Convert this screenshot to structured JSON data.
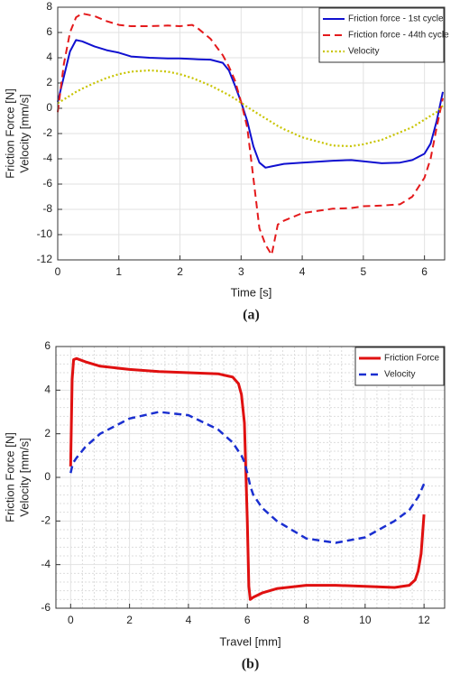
{
  "chart_data": [
    {
      "type": "line",
      "caption": "(a)",
      "xlabel": "Time [s]",
      "ylabel": [
        "Friction Force [N]",
        "Velocity [mm/s]"
      ],
      "x": [
        0,
        0.1,
        0.2,
        0.3,
        0.4,
        0.6,
        0.8,
        1.0,
        1.2,
        1.5,
        1.8,
        2.0,
        2.2,
        2.3,
        2.5,
        2.7,
        2.8,
        2.9,
        3.0,
        3.1,
        3.2,
        3.3,
        3.4,
        3.5,
        3.6,
        3.7,
        4.0,
        4.5,
        4.8,
        5.0,
        5.3,
        5.6,
        5.8,
        6.0,
        6.1,
        6.2,
        6.3
      ],
      "series": [
        {
          "name": "Friction force - 1st cycle",
          "color": "#1010d0",
          "dash": "solid",
          "values": [
            0.5,
            2.5,
            4.5,
            5.4,
            5.3,
            4.9,
            4.6,
            4.4,
            4.1,
            4.0,
            3.95,
            3.95,
            3.9,
            3.88,
            3.85,
            3.6,
            3.0,
            1.8,
            0.5,
            -1.0,
            -3.0,
            -4.3,
            -4.7,
            -4.6,
            -4.5,
            -4.4,
            -4.3,
            -4.15,
            -4.1,
            -4.2,
            -4.35,
            -4.3,
            -4.1,
            -3.6,
            -2.8,
            -1.0,
            1.3
          ]
        },
        {
          "name": "Friction force - 44th cycle",
          "color": "#e41a1c",
          "dash": "dashed",
          "values": [
            -0.3,
            3.5,
            6.0,
            7.2,
            7.5,
            7.3,
            6.9,
            6.6,
            6.5,
            6.5,
            6.55,
            6.5,
            6.6,
            6.3,
            5.5,
            4.2,
            3.3,
            2.2,
            0.5,
            -1.5,
            -5.5,
            -9.5,
            -10.8,
            -11.6,
            -9.2,
            -8.9,
            -8.3,
            -7.95,
            -7.9,
            -7.75,
            -7.7,
            -7.6,
            -7.0,
            -5.5,
            -4.0,
            -1.5,
            0.8
          ]
        },
        {
          "name": "Velocity",
          "color": "#c8c400",
          "dash": "dotted",
          "values": [
            0.4,
            0.7,
            1.0,
            1.3,
            1.55,
            2.0,
            2.4,
            2.7,
            2.9,
            3.0,
            2.9,
            2.7,
            2.4,
            2.2,
            1.8,
            1.3,
            1.05,
            0.75,
            0.45,
            0.1,
            -0.2,
            -0.5,
            -0.8,
            -1.1,
            -1.4,
            -1.65,
            -2.3,
            -2.95,
            -3.0,
            -2.85,
            -2.5,
            -1.9,
            -1.5,
            -0.9,
            -0.6,
            -0.3,
            0.2
          ]
        }
      ],
      "xlim": [
        0,
        6.33
      ],
      "xticks": [
        0,
        1,
        2,
        3,
        4,
        5,
        6
      ],
      "ylim": [
        -12,
        8
      ],
      "yticks": [
        -12,
        -10,
        -8,
        -6,
        -4,
        -2,
        0,
        2,
        4,
        6,
        8
      ],
      "grid": true,
      "minor_grid": false,
      "legend": "northeast"
    },
    {
      "type": "line",
      "caption": "(b)",
      "xlabel": "Travel [mm]",
      "ylabel": [
        "Friction Force [N]",
        "Velocity [mm/s]"
      ],
      "x": [
        0,
        0.05,
        0.1,
        0.2,
        0.5,
        1,
        2,
        3,
        4,
        5,
        5.5,
        5.7,
        5.8,
        5.9,
        6.0,
        6.05,
        6.1,
        6.2,
        6.5,
        7,
        8,
        9,
        10,
        11,
        11.5,
        11.7,
        11.8,
        11.9,
        12.0
      ],
      "series": [
        {
          "name": "Friction Force",
          "color": "#e01010",
          "dash": "solid",
          "values": [
            0.5,
            4.5,
            5.4,
            5.45,
            5.3,
            5.1,
            4.95,
            4.85,
            4.8,
            4.75,
            4.6,
            4.3,
            3.8,
            2.5,
            -2.0,
            -5.0,
            -5.6,
            -5.5,
            -5.3,
            -5.1,
            -4.95,
            -4.95,
            -5.0,
            -5.05,
            -4.95,
            -4.7,
            -4.3,
            -3.5,
            -1.7
          ]
        },
        {
          "name": "Velocity",
          "color": "#1a2fd0",
          "dash": "dashed",
          "values": [
            0.2,
            0.5,
            0.7,
            0.9,
            1.4,
            2.0,
            2.7,
            3.0,
            2.85,
            2.2,
            1.6,
            1.2,
            1.0,
            0.7,
            0.2,
            -0.1,
            -0.4,
            -0.8,
            -1.4,
            -2.0,
            -2.8,
            -3.0,
            -2.75,
            -2.0,
            -1.5,
            -1.1,
            -0.9,
            -0.6,
            -0.3
          ]
        }
      ],
      "xlim": [
        -0.5,
        12.7
      ],
      "xticks": [
        0,
        2,
        4,
        6,
        8,
        10,
        12
      ],
      "ylim": [
        -6,
        6
      ],
      "yticks": [
        -6,
        -4,
        -2,
        0,
        2,
        4,
        6
      ],
      "grid": true,
      "minor_grid": true,
      "legend": "northeast"
    }
  ]
}
